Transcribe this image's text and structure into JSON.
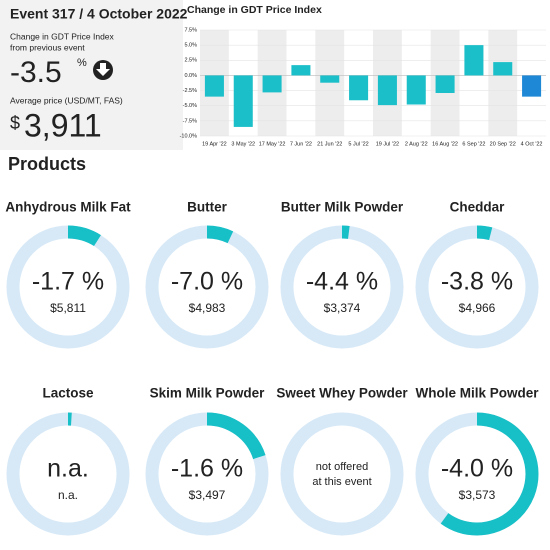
{
  "header": {
    "title": "Event 317 / 4 October 2022",
    "change_caption": [
      "Change in GDT Price Index",
      "from previous event"
    ],
    "change": -3.5,
    "change_unit": "%",
    "price_caption": "Average price (USD/MT, FAS)",
    "currency": "$",
    "price": {
      "value": 3911,
      "label": "3,911"
    }
  },
  "chart_data": {
    "type": "bar",
    "title": "Change in GDT Price Index",
    "categories": [
      "19 Apr '22",
      "3 May '22",
      "17 May '22",
      "7 Jun '22",
      "21 Jun '22",
      "5 Jul '22",
      "19 Jul '22",
      "2 Aug '22",
      "16 Aug '22",
      "6 Sep '22",
      "20 Sep '22",
      "4 Oct '22"
    ],
    "values": [
      -3.5,
      -8.5,
      -2.8,
      1.7,
      -1.2,
      -4.1,
      -4.9,
      -4.8,
      -2.9,
      5.0,
      2.2,
      -3.5
    ],
    "colors": [
      "#1bbfc9",
      "#1bbfc9",
      "#1bbfc9",
      "#1bbfc9",
      "#1bbfc9",
      "#1bbfc9",
      "#1bbfc9",
      "#1bbfc9",
      "#1bbfc9",
      "#1bbfc9",
      "#1bbfc9",
      "#1e88d6"
    ],
    "ylim": [
      -10,
      7.5
    ],
    "yticks": [
      {
        "value": 7.5,
        "label": "7.5%"
      },
      {
        "value": 5,
        "label": "5.0%"
      },
      {
        "value": 2.5,
        "label": "2.5%"
      },
      {
        "value": 0,
        "label": "0.0%"
      },
      {
        "value": -2.5,
        "label": "-2.5%"
      },
      {
        "value": -5,
        "label": "-5.0%"
      },
      {
        "value": -7.5,
        "label": "-7.5%"
      },
      {
        "value": -10,
        "label": "-10.0%"
      }
    ]
  },
  "products": {
    "title": "Products",
    "items": [
      {
        "name": "Anhydrous Milk Fat",
        "change": {
          "value": -1.7,
          "label": "-1.7 %"
        },
        "price": {
          "value": 5811,
          "label": "$5,811"
        },
        "share": 9
      },
      {
        "name": "Butter",
        "change": {
          "value": -7.0,
          "label": "-7.0 %"
        },
        "price": {
          "value": 4983,
          "label": "$4,983"
        },
        "share": 7
      },
      {
        "name": "Butter Milk Powder",
        "change": {
          "value": -4.4,
          "label": "-4.4 %"
        },
        "price": {
          "value": 3374,
          "label": "$3,374"
        },
        "share": 2
      },
      {
        "name": "Cheddar",
        "change": {
          "value": -3.8,
          "label": "-3.8 %"
        },
        "price": {
          "value": 4966,
          "label": "$4,966"
        },
        "share": 4
      },
      {
        "name": "Lactose",
        "change": {
          "value": null,
          "label": "n.a."
        },
        "price": {
          "value": null,
          "label": "n.a."
        },
        "share": 1
      },
      {
        "name": "Skim Milk Powder",
        "change": {
          "value": -1.6,
          "label": "-1.6 %"
        },
        "price": {
          "value": 3497,
          "label": "$3,497"
        },
        "share": 20
      },
      {
        "name": "Sweet Whey Powder",
        "note": [
          "not offered",
          "at this event"
        ],
        "share": null
      },
      {
        "name": "Whole Milk Powder",
        "change": {
          "value": -4.0,
          "label": "-4.0 %"
        },
        "price": {
          "value": 3573,
          "label": "$3,573"
        },
        "share": 60
      }
    ]
  }
}
